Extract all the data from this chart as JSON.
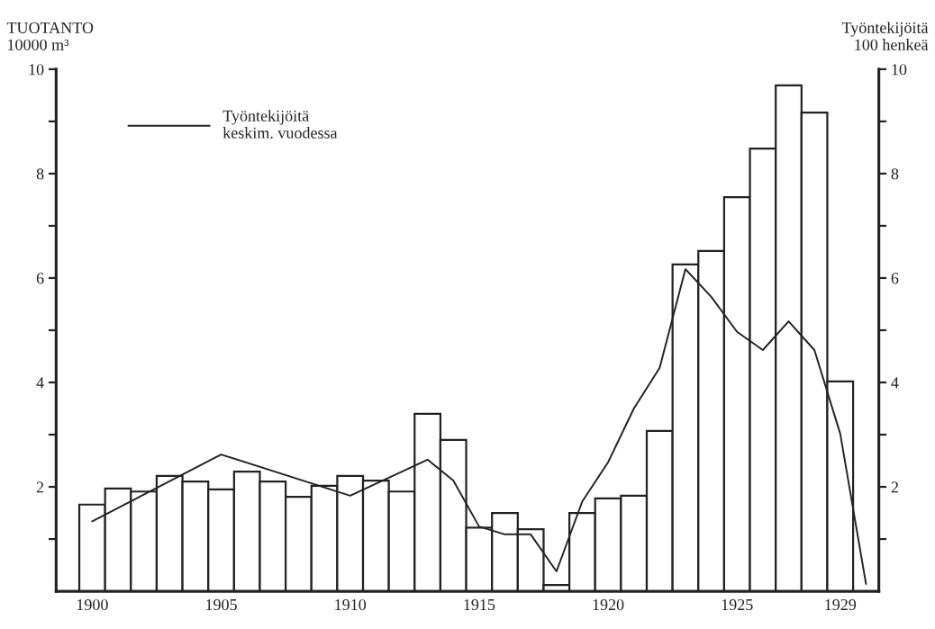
{
  "chart_data": {
    "type": "bar",
    "ylabel": "TUOTANTO\n10000 m³",
    "y2label": "Työntekijöitä\n100 henkeä",
    "x": [
      1900,
      1901,
      1902,
      1903,
      1904,
      1905,
      1906,
      1907,
      1908,
      1909,
      1910,
      1911,
      1912,
      1913,
      1914,
      1915,
      1916,
      1917,
      1918,
      1919,
      1920,
      1921,
      1922,
      1923,
      1924,
      1925,
      1926,
      1927,
      1928,
      1929
    ],
    "xlim": [
      1898.6,
      1930.5
    ],
    "xticks": [
      1900,
      1905,
      1910,
      1915,
      1920,
      1925,
      1929
    ],
    "ylim": [
      0,
      10
    ],
    "yticks": [
      {
        "value": 1,
        "label": null
      },
      2,
      {
        "value": 3,
        "label": null
      },
      4,
      {
        "value": 5,
        "label": null
      },
      6,
      {
        "value": 7,
        "label": null
      },
      8,
      {
        "value": 9,
        "label": null
      },
      10
    ],
    "y2lim": [
      0,
      10
    ],
    "y2ticks": [
      {
        "value": 1,
        "label": null
      },
      2,
      {
        "value": 3,
        "label": null
      },
      4,
      {
        "value": 5,
        "label": null
      },
      6,
      {
        "value": 7,
        "label": null
      },
      8,
      {
        "value": 9,
        "label": null
      },
      10
    ],
    "series": [
      {
        "color": "#ffffff",
        "values": [
          1.66,
          1.97,
          1.91,
          2.21,
          2.1,
          1.95,
          2.29,
          2.1,
          1.81,
          2.02,
          2.21,
          2.12,
          1.91,
          3.4,
          2.9,
          1.22,
          1.5,
          1.19,
          0.12,
          1.5,
          1.78,
          1.83,
          3.07,
          6.26,
          6.52,
          7.55,
          8.48,
          9.69,
          9.17,
          4.02
        ]
      },
      {
        "type": "line",
        "axis": "y2",
        "name": "Työntekijöitä\nkeskim. vuodessa",
        "color": "#222222",
        "x": [
          1900,
          1905,
          1910,
          1913,
          1914,
          1915,
          1916,
          1917,
          1918,
          1919,
          1920,
          1921,
          1922,
          1923,
          1924,
          1925,
          1926,
          1927,
          1928,
          1929,
          1930
        ],
        "values": [
          1.34,
          2.62,
          1.83,
          2.52,
          2.12,
          1.24,
          1.09,
          1.09,
          0.38,
          1.72,
          2.47,
          3.5,
          4.28,
          6.17,
          5.64,
          4.97,
          4.62,
          5.17,
          4.62,
          3.02,
          0.14
        ]
      }
    ],
    "legend": "top left",
    "grid": false,
    "marker": "none",
    "line_style": "solid"
  }
}
